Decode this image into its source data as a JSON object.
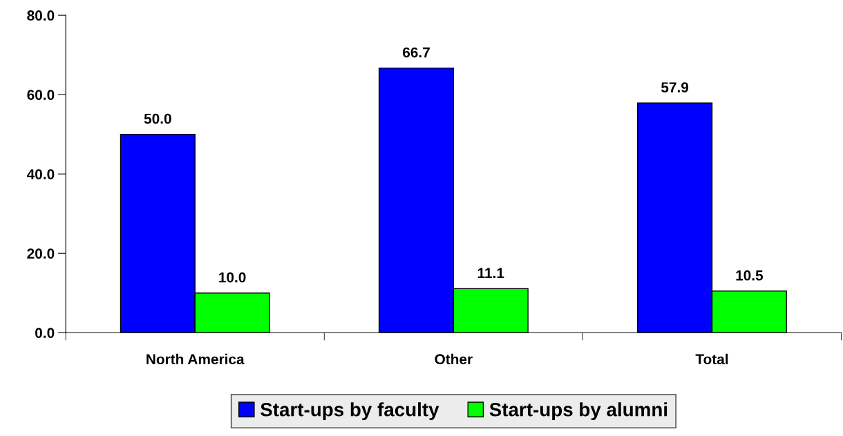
{
  "chart_data": {
    "type": "bar",
    "categories": [
      "North America",
      "Other",
      "Total"
    ],
    "series": [
      {
        "name": "Start-ups by faculty",
        "color": "#0000ff",
        "values": [
          50.0,
          66.7,
          57.9
        ],
        "value_labels": [
          "50.0",
          "66.7",
          "57.9"
        ]
      },
      {
        "name": "Start-ups by alumni",
        "color": "#00ff00",
        "values": [
          10.0,
          11.1,
          10.5
        ],
        "value_labels": [
          "10.0",
          "11.1",
          "10.5"
        ]
      }
    ],
    "ylim": [
      0,
      80
    ],
    "yticks": [
      {
        "value": 0,
        "label": "0.0"
      },
      {
        "value": 20,
        "label": "20.0"
      },
      {
        "value": 40,
        "label": "40.0"
      },
      {
        "value": 60,
        "label": "60.0"
      },
      {
        "value": 80,
        "label": "80.0"
      }
    ],
    "grid": false,
    "legend": "bottom"
  }
}
